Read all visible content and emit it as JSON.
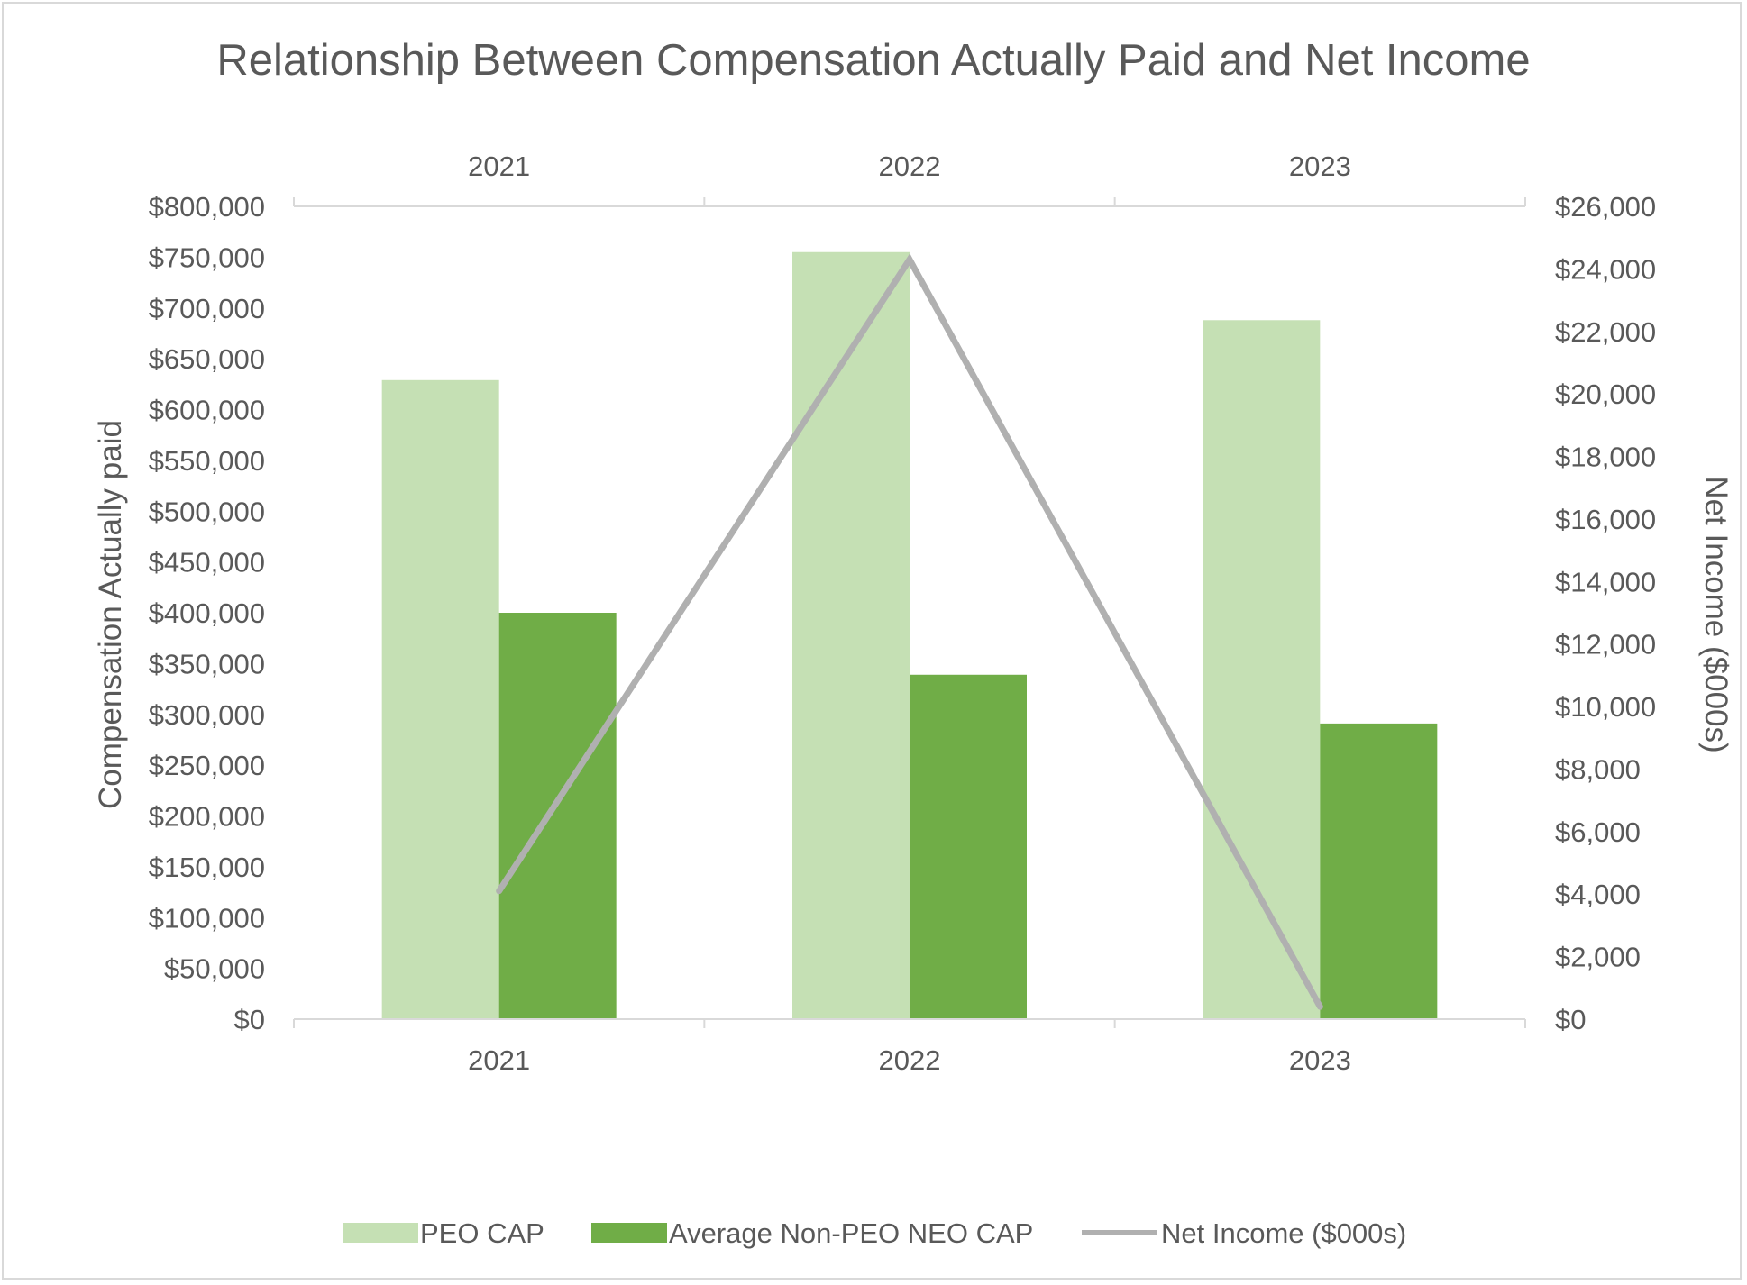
{
  "chart_data": {
    "type": "bar",
    "title": "Relationship Between Compensation Actually Paid and Net Income",
    "categories": [
      "2021",
      "2022",
      "2023"
    ],
    "y_left": {
      "label": "Compensation Actually paid",
      "lim": [
        0,
        800000
      ],
      "step": 50000,
      "ticks": [
        "$0",
        "$50,000",
        "$100,000",
        "$150,000",
        "$200,000",
        "$250,000",
        "$300,000",
        "$350,000",
        "$400,000",
        "$450,000",
        "$500,000",
        "$550,000",
        "$600,000",
        "$650,000",
        "$700,000",
        "$750,000",
        "$800,000"
      ]
    },
    "y_right": {
      "label": "Net Income ($000s)",
      "lim": [
        0,
        26000
      ],
      "step": 2000,
      "ticks": [
        "$0",
        "$2,000",
        "$4,000",
        "$6,000",
        "$8,000",
        "$10,000",
        "$12,000",
        "$14,000",
        "$16,000",
        "$18,000",
        "$20,000",
        "$22,000",
        "$24,000",
        "$26,000"
      ]
    },
    "series": [
      {
        "name": "PEO CAP",
        "type": "bar",
        "axis": "left",
        "color": "#c5e0b4",
        "values": [
          629000,
          755000,
          688000
        ]
      },
      {
        "name": "Average Non-PEO NEO CAP",
        "type": "bar",
        "axis": "left",
        "color": "#70ad47",
        "values": [
          400000,
          339000,
          291000
        ]
      },
      {
        "name": "Net Income ($000s)",
        "type": "line",
        "axis": "right",
        "color": "#b0b0b0",
        "values": [
          4100,
          24300,
          400
        ]
      }
    ],
    "grid": false,
    "legend_position": "bottom"
  }
}
